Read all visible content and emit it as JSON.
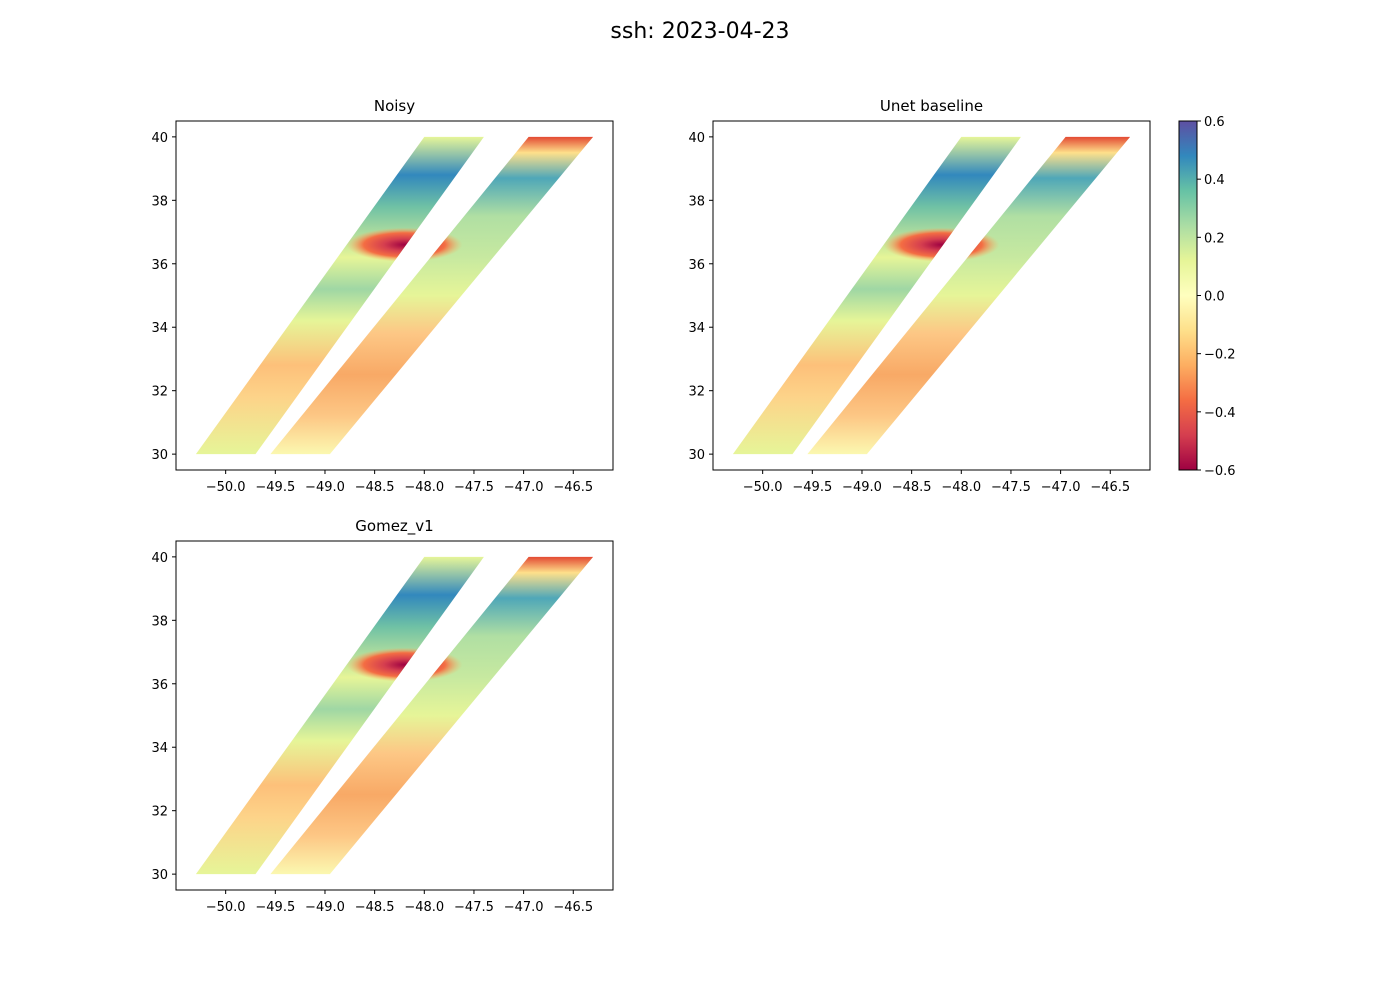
{
  "figure": {
    "suptitle": "ssh: 2023-04-23"
  },
  "colorbar": {
    "vmin": -0.6,
    "vmax": 0.6,
    "colormap": "Spectral",
    "ticks": [
      0.6,
      0.4,
      0.2,
      0.0,
      -0.2,
      -0.4,
      -0.6
    ],
    "tick_labels": [
      "0.6",
      "0.4",
      "0.2",
      "0.0",
      "−0.2",
      "−0.4",
      "−0.6"
    ]
  },
  "chart_data": [
    {
      "type": "scatter",
      "title": "Noisy",
      "xlabel": "",
      "ylabel": "",
      "xlim": [
        -50.5,
        -46.1
      ],
      "ylim": [
        29.5,
        40.5
      ],
      "x_ticks": [
        -50.0,
        -49.5,
        -49.0,
        -48.5,
        -48.0,
        -47.5,
        -47.0,
        -46.5
      ],
      "x_tick_labels": [
        "−50.0",
        "−49.5",
        "−49.0",
        "−48.5",
        "−48.0",
        "−47.5",
        "−47.0",
        "−46.5"
      ],
      "y_ticks": [
        30,
        32,
        34,
        36,
        38,
        40
      ],
      "y_tick_labels": [
        "30",
        "32",
        "34",
        "36",
        "38",
        "40"
      ],
      "grid": false,
      "swaths": [
        {
          "name": "left swath",
          "corners": [
            [
              -50.3,
              30.0
            ],
            [
              -49.7,
              30.0
            ],
            [
              -47.4,
              40.0
            ],
            [
              -48.0,
              40.0
            ]
          ]
        },
        {
          "name": "right swath",
          "corners": [
            [
              -49.55,
              30.0
            ],
            [
              -48.95,
              30.0
            ],
            [
              -46.3,
              40.0
            ],
            [
              -46.95,
              40.0
            ]
          ]
        }
      ]
    },
    {
      "type": "scatter",
      "title": "Unet baseline",
      "xlabel": "",
      "ylabel": "",
      "xlim": [
        -50.5,
        -46.1
      ],
      "ylim": [
        29.5,
        40.5
      ],
      "x_ticks": [
        -50.0,
        -49.5,
        -49.0,
        -48.5,
        -48.0,
        -47.5,
        -47.0,
        -46.5
      ],
      "x_tick_labels": [
        "−50.0",
        "−49.5",
        "−49.0",
        "−48.5",
        "−48.0",
        "−47.5",
        "−47.0",
        "−46.5"
      ],
      "y_ticks": [
        30,
        32,
        34,
        36,
        38,
        40
      ],
      "y_tick_labels": [
        "30",
        "32",
        "34",
        "36",
        "38",
        "40"
      ],
      "grid": false,
      "swaths": [
        {
          "name": "left swath",
          "corners": [
            [
              -50.3,
              30.0
            ],
            [
              -49.7,
              30.0
            ],
            [
              -47.4,
              40.0
            ],
            [
              -48.0,
              40.0
            ]
          ]
        },
        {
          "name": "right swath",
          "corners": [
            [
              -49.55,
              30.0
            ],
            [
              -48.95,
              30.0
            ],
            [
              -46.3,
              40.0
            ],
            [
              -46.95,
              40.0
            ]
          ]
        }
      ]
    },
    {
      "type": "scatter",
      "title": "Gomez_v1",
      "xlabel": "",
      "ylabel": "",
      "xlim": [
        -50.5,
        -46.1
      ],
      "ylim": [
        29.5,
        40.5
      ],
      "x_ticks": [
        -50.0,
        -49.5,
        -49.0,
        -48.5,
        -48.0,
        -47.5,
        -47.0,
        -46.5
      ],
      "x_tick_labels": [
        "−50.0",
        "−49.5",
        "−49.0",
        "−48.5",
        "−48.0",
        "−47.5",
        "−47.0",
        "−46.5"
      ],
      "y_ticks": [
        30,
        32,
        34,
        36,
        38,
        40
      ],
      "y_tick_labels": [
        "30",
        "32",
        "34",
        "36",
        "38",
        "40"
      ],
      "grid": false,
      "swaths": [
        {
          "name": "left swath",
          "corners": [
            [
              -50.3,
              30.0
            ],
            [
              -49.7,
              30.0
            ],
            [
              -47.4,
              40.0
            ],
            [
              -48.0,
              40.0
            ]
          ]
        },
        {
          "name": "right swath",
          "corners": [
            [
              -49.55,
              30.0
            ],
            [
              -48.95,
              30.0
            ],
            [
              -46.3,
              40.0
            ],
            [
              -46.95,
              40.0
            ]
          ]
        }
      ]
    }
  ]
}
